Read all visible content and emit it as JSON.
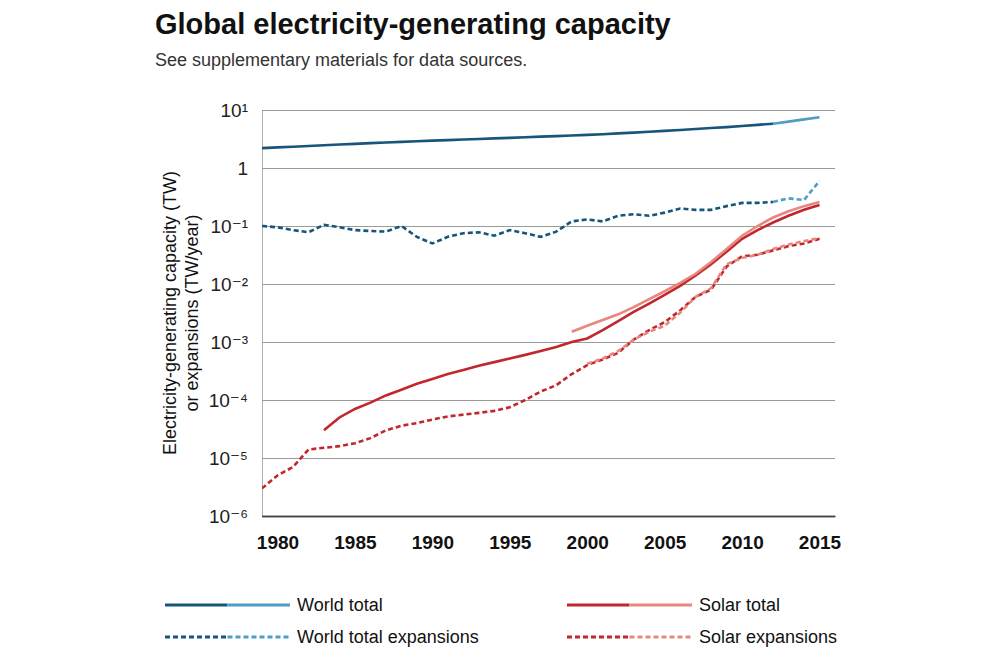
{
  "chart_data": {
    "type": "line",
    "title": "Global electricity-generating capacity",
    "subtitle": "See supplementary materials for data sources.",
    "ylabel": [
      "Electricity-generating capacity (TW)",
      "or expansions (TW/year)"
    ],
    "log": "y",
    "grid": true,
    "legend": "bottom",
    "x": [
      1979,
      1980,
      1981,
      1982,
      1983,
      1984,
      1985,
      1986,
      1987,
      1988,
      1989,
      1990,
      1991,
      1992,
      1993,
      1994,
      1995,
      1996,
      1997,
      1998,
      1999,
      2000,
      2001,
      2002,
      2003,
      2004,
      2005,
      2006,
      2007,
      2008,
      2009,
      2010,
      2011,
      2012,
      2013,
      2014,
      2015
    ],
    "xlim": [
      1979,
      2016
    ],
    "xticks": [
      1980,
      1985,
      1990,
      1995,
      2000,
      2005,
      2010,
      2015
    ],
    "ylim": [
      1e-06,
      10
    ],
    "yticks": [
      {
        "value": 10,
        "label": "10¹"
      },
      1,
      {
        "value": 0.1,
        "label": "10⁻¹"
      },
      {
        "value": 0.01,
        "label": "10⁻²"
      },
      {
        "value": 0.001,
        "label": "10⁻³"
      },
      {
        "value": 0.0001,
        "label": "10⁻⁴"
      },
      {
        "value": 1e-05,
        "label": "10⁻⁵"
      },
      {
        "value": 1e-06,
        "label": "10⁻⁶"
      }
    ],
    "series": [
      {
        "name": "World total",
        "color": "#17557a",
        "line_style": "solid",
        "values": [
          2.2,
          2.27,
          2.33,
          2.4,
          2.47,
          2.54,
          2.61,
          2.68,
          2.75,
          2.82,
          2.9,
          2.97,
          3.03,
          3.1,
          3.17,
          3.24,
          3.31,
          3.39,
          3.47,
          3.55,
          3.63,
          3.72,
          3.83,
          3.95,
          4.08,
          4.22,
          4.37,
          4.53,
          4.7,
          4.88,
          5.07,
          5.3,
          5.55,
          5.8,
          null,
          null,
          null
        ]
      },
      {
        "name": "World total",
        "color": "#4f9dc8",
        "line_style": "solid",
        "values": [
          null,
          null,
          null,
          null,
          null,
          null,
          null,
          null,
          null,
          null,
          null,
          null,
          null,
          null,
          null,
          null,
          null,
          null,
          null,
          null,
          null,
          null,
          null,
          null,
          null,
          null,
          null,
          null,
          null,
          null,
          null,
          null,
          null,
          5.8,
          6.3,
          6.9,
          7.5
        ]
      },
      {
        "name": "World total expansions",
        "color": "#17557a",
        "line_style": "dashed",
        "values": [
          0.1,
          0.095,
          0.085,
          0.078,
          0.105,
          0.095,
          0.085,
          0.082,
          0.08,
          0.1,
          0.065,
          0.05,
          0.065,
          0.075,
          0.078,
          0.068,
          0.085,
          0.075,
          0.065,
          0.08,
          0.12,
          0.13,
          0.12,
          0.15,
          0.16,
          0.15,
          0.17,
          0.2,
          0.19,
          0.19,
          0.22,
          0.25,
          0.25,
          0.26,
          null,
          null,
          null
        ]
      },
      {
        "name": "World total expansions",
        "color": "#4f9dc8",
        "line_style": "dashed",
        "values": [
          null,
          null,
          null,
          null,
          null,
          null,
          null,
          null,
          null,
          null,
          null,
          null,
          null,
          null,
          null,
          null,
          null,
          null,
          null,
          null,
          null,
          null,
          null,
          null,
          null,
          null,
          null,
          null,
          null,
          null,
          null,
          null,
          null,
          0.26,
          0.3,
          0.28,
          0.6
        ]
      },
      {
        "name": "Solar total",
        "color": "#c1272d",
        "line_style": "solid",
        "values": [
          null,
          null,
          null,
          null,
          3e-05,
          5e-05,
          7e-05,
          9e-05,
          0.00012,
          0.00015,
          0.00019,
          0.00023,
          0.00028,
          0.00033,
          0.00039,
          0.00045,
          0.00052,
          0.0006,
          0.0007,
          0.00082,
          0.001,
          0.00115,
          0.0016,
          0.0023,
          0.0033,
          0.0046,
          0.0065,
          0.0093,
          0.014,
          0.022,
          0.036,
          0.06,
          0.085,
          0.115,
          0.15,
          0.19,
          0.23
        ]
      },
      {
        "name": "Solar total",
        "color": "#e8877f",
        "line_style": "solid",
        "values": [
          null,
          null,
          null,
          null,
          null,
          null,
          null,
          null,
          null,
          null,
          null,
          null,
          null,
          null,
          null,
          null,
          null,
          null,
          null,
          null,
          0.0015,
          0.0019,
          0.0024,
          0.003,
          0.004,
          0.0055,
          0.0075,
          0.0105,
          0.015,
          0.024,
          0.04,
          0.068,
          0.1,
          0.14,
          0.18,
          0.22,
          0.26
        ]
      },
      {
        "name": "Solar expansions",
        "color": "#c1272d",
        "line_style": "dashed",
        "values": [
          3e-06,
          5e-06,
          7e-06,
          1.4e-05,
          1.5e-05,
          1.6e-05,
          1.8e-05,
          2.2e-05,
          3e-05,
          3.6e-05,
          4e-05,
          4.6e-05,
          5.2e-05,
          5.6e-05,
          6e-05,
          6.5e-05,
          7.5e-05,
          0.0001,
          0.00014,
          0.00018,
          0.00028,
          0.0004,
          0.0005,
          0.00065,
          0.0011,
          0.0016,
          0.0022,
          0.0035,
          0.006,
          0.008,
          0.02,
          0.03,
          0.032,
          0.038,
          0.045,
          0.05,
          0.06
        ]
      },
      {
        "name": "Solar expansions",
        "color": "#e8877f",
        "line_style": "dashed",
        "values": [
          null,
          null,
          null,
          null,
          null,
          null,
          null,
          null,
          null,
          null,
          null,
          null,
          null,
          null,
          null,
          null,
          null,
          null,
          null,
          null,
          null,
          0.00042,
          0.00052,
          0.0007,
          0.0011,
          0.0015,
          0.0019,
          0.0032,
          0.006,
          0.0085,
          0.022,
          0.028,
          0.032,
          0.04,
          0.048,
          0.055,
          0.062
        ]
      }
    ]
  }
}
